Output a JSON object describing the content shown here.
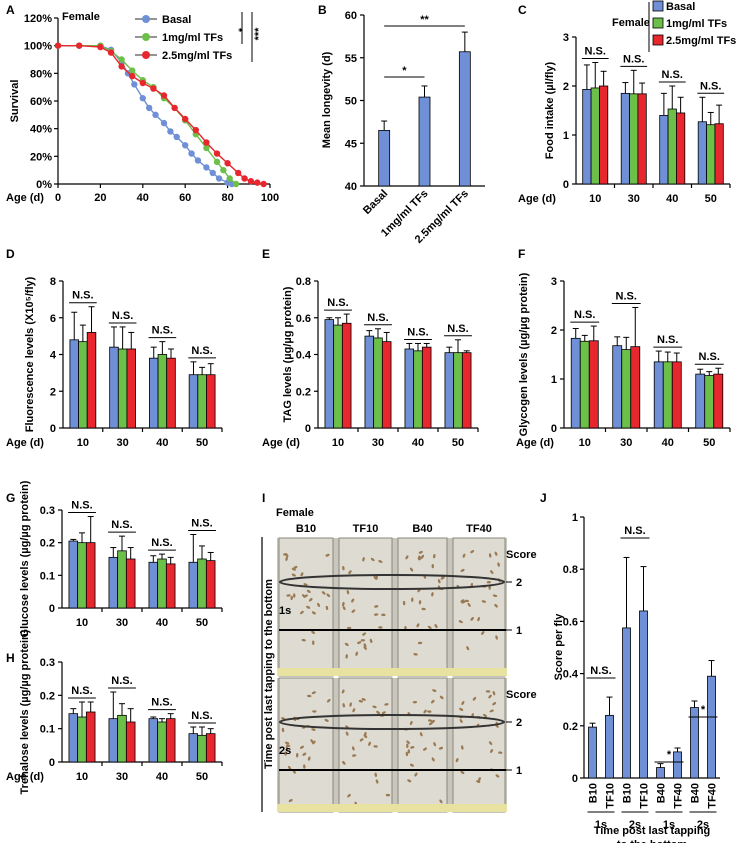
{
  "colors": {
    "basal": "#6f8fd6",
    "tf1": "#6cc04a",
    "tf25": "#e8262e",
    "axis": "#000000",
    "photo_bg": "#c9c6bc",
    "fly": "#9a7a52"
  },
  "panel_labels": [
    "A",
    "B",
    "C",
    "D",
    "E",
    "F",
    "G",
    "H",
    "I",
    "J"
  ],
  "chart_data": [
    {
      "panel": "A",
      "type": "line",
      "title": "Female",
      "xlabel": "Age (d)",
      "ylabel": "Survival",
      "xlim": [
        0,
        100
      ],
      "ylim": [
        0,
        120
      ],
      "x_ticks": [
        "0",
        "20",
        "40",
        "60",
        "80",
        "100"
      ],
      "y_ticks": [
        "0%",
        "20%",
        "40%",
        "60%",
        "80%",
        "100%",
        "120%"
      ],
      "legend": [
        "Basal",
        "1mg/ml TFs",
        "2.5mg/ml TFs"
      ],
      "significance": [
        "*",
        "***"
      ],
      "series": [
        {
          "name": "Basal",
          "x": [
            0,
            10,
            20,
            25,
            30,
            33,
            36,
            40,
            43,
            46,
            50,
            53,
            56,
            60,
            63,
            66,
            70,
            73,
            76,
            80,
            82
          ],
          "y": [
            100,
            100,
            100,
            97,
            88,
            80,
            72,
            62,
            55,
            50,
            44,
            38,
            34,
            28,
            22,
            17,
            12,
            8,
            4,
            1,
            0
          ]
        },
        {
          "name": "1mg/ml TFs",
          "x": [
            0,
            10,
            20,
            25,
            30,
            35,
            40,
            45,
            50,
            55,
            60,
            65,
            70,
            75,
            78,
            81,
            84
          ],
          "y": [
            100,
            100,
            100,
            96,
            90,
            82,
            75,
            70,
            62,
            55,
            46,
            36,
            26,
            16,
            10,
            4,
            0
          ]
        },
        {
          "name": "2.5mg/ml TFs",
          "x": [
            0,
            10,
            20,
            25,
            30,
            35,
            40,
            45,
            50,
            55,
            60,
            65,
            70,
            75,
            80,
            85,
            88,
            91,
            94,
            97
          ],
          "y": [
            100,
            100,
            99,
            95,
            85,
            78,
            73,
            69,
            64,
            55,
            47,
            39,
            30,
            22,
            15,
            8,
            4,
            2,
            1,
            0
          ]
        }
      ]
    },
    {
      "panel": "B",
      "type": "bar",
      "ylabel": "Mean longevity (d)",
      "ylim": [
        40,
        60
      ],
      "y_ticks": [
        "40",
        "45",
        "50",
        "55",
        "60"
      ],
      "categories": [
        "Basal",
        "1mg/ml TFs",
        "2.5mg/ml TFs"
      ],
      "values": [
        46.5,
        50.4,
        55.7
      ],
      "errors": [
        1.1,
        1.3,
        2.3
      ],
      "significance": [
        "*",
        "**"
      ]
    },
    {
      "panel": "C",
      "type": "bar",
      "ylabel": "Food intake (µl/fly)",
      "xlabel": "Age (d)",
      "ylim": [
        0,
        3
      ],
      "y_ticks": [
        "0",
        "1",
        "2",
        "3"
      ],
      "categories": [
        "10",
        "30",
        "40",
        "50"
      ],
      "legend_title": "Female",
      "legend": [
        "Basal",
        "1mg/ml TFs",
        "2.5mg/ml TFs"
      ],
      "annotation": "N.S.",
      "series": [
        {
          "name": "Basal",
          "values": [
            1.93,
            1.85,
            1.4,
            1.27
          ],
          "errors": [
            0.5,
            0.22,
            0.45,
            0.5
          ]
        },
        {
          "name": "1mg/ml TFs",
          "values": [
            1.96,
            1.84,
            1.53,
            1.21
          ],
          "errors": [
            0.52,
            0.48,
            0.47,
            0.25
          ]
        },
        {
          "name": "2.5mg/ml TFs",
          "values": [
            2.0,
            1.84,
            1.45,
            1.23
          ],
          "errors": [
            0.3,
            0.22,
            0.32,
            0.38
          ]
        }
      ]
    },
    {
      "panel": "D",
      "type": "bar",
      "ylabel": "Fluorescence levels (X10⁵/fly)",
      "xlabel": "Age (d)",
      "ylim": [
        0,
        8
      ],
      "y_ticks": [
        "0",
        "2",
        "4",
        "6",
        "8"
      ],
      "categories": [
        "10",
        "30",
        "40",
        "50"
      ],
      "annotation": "N.S.",
      "series": [
        {
          "name": "Basal",
          "values": [
            4.8,
            4.4,
            3.8,
            2.9
          ],
          "errors": [
            1.5,
            1.1,
            0.6,
            0.7
          ]
        },
        {
          "name": "1mg/ml TFs",
          "values": [
            4.7,
            4.3,
            4.0,
            2.9
          ],
          "errors": [
            0.9,
            1.2,
            0.7,
            0.4
          ]
        },
        {
          "name": "2.5mg/ml TFs",
          "values": [
            5.2,
            4.3,
            3.8,
            2.9
          ],
          "errors": [
            1.4,
            0.9,
            0.5,
            0.6
          ]
        }
      ]
    },
    {
      "panel": "E",
      "type": "bar",
      "ylabel": "TAG levels (µg/µg protein)",
      "xlabel": "Age (d)",
      "ylim": [
        0,
        0.8
      ],
      "y_ticks": [
        "0",
        "0.2",
        "0.4",
        "0.6",
        "0.8"
      ],
      "categories": [
        "10",
        "30",
        "40",
        "50"
      ],
      "annotation": "N.S.",
      "series": [
        {
          "name": "Basal",
          "values": [
            0.59,
            0.5,
            0.43,
            0.41
          ],
          "errors": [
            0.01,
            0.03,
            0.03,
            0.03
          ]
        },
        {
          "name": "1mg/ml TFs",
          "values": [
            0.56,
            0.49,
            0.42,
            0.41
          ],
          "errors": [
            0.04,
            0.05,
            0.04,
            0.07
          ]
        },
        {
          "name": "2.5mg/ml TFs",
          "values": [
            0.57,
            0.47,
            0.44,
            0.41
          ],
          "errors": [
            0.05,
            0.05,
            0.02,
            0.01
          ]
        }
      ]
    },
    {
      "panel": "F",
      "type": "bar",
      "ylabel": "Glycogen levels (µg/µg protein)",
      "xlabel": "Age (d)",
      "ylim": [
        0,
        3
      ],
      "y_ticks": [
        "0",
        "1",
        "2",
        "3"
      ],
      "categories": [
        "10",
        "30",
        "40",
        "50"
      ],
      "annotation": "N.S.",
      "series": [
        {
          "name": "Basal",
          "values": [
            1.83,
            1.68,
            1.35,
            1.1
          ],
          "errors": [
            0.2,
            0.18,
            0.22,
            0.1
          ]
        },
        {
          "name": "1mg/ml TFs",
          "values": [
            1.77,
            1.6,
            1.35,
            1.07
          ],
          "errors": [
            0.12,
            0.25,
            0.2,
            0.08
          ]
        },
        {
          "name": "2.5mg/ml TFs",
          "values": [
            1.78,
            1.66,
            1.35,
            1.1
          ],
          "errors": [
            0.3,
            0.8,
            0.18,
            0.12
          ]
        }
      ]
    },
    {
      "panel": "G",
      "type": "bar",
      "ylabel": "Glucose levels (µg/µg protein)",
      "xlabel": "",
      "ylim": [
        0,
        0.3
      ],
      "y_ticks": [
        "0",
        "0.1",
        "0.2",
        "0.3"
      ],
      "categories": [
        "10",
        "30",
        "40",
        "50"
      ],
      "annotation": "N.S.",
      "series": [
        {
          "name": "Basal",
          "values": [
            0.205,
            0.155,
            0.14,
            0.14
          ],
          "errors": [
            0.005,
            0.03,
            0.02,
            0.085
          ]
        },
        {
          "name": "1mg/ml TFs",
          "values": [
            0.2,
            0.175,
            0.15,
            0.15
          ],
          "errors": [
            0.03,
            0.045,
            0.015,
            0.04
          ]
        },
        {
          "name": "2.5mg/ml TFs",
          "values": [
            0.2,
            0.15,
            0.135,
            0.145
          ],
          "errors": [
            0.08,
            0.035,
            0.02,
            0.025
          ]
        }
      ]
    },
    {
      "panel": "H",
      "type": "bar",
      "ylabel": "Trehalose levels (µg/µg protein)",
      "xlabel": "Age (d)",
      "ylim": [
        0,
        0.3
      ],
      "y_ticks": [
        "0",
        "0.1",
        "0.2",
        "0.3"
      ],
      "categories": [
        "10",
        "30",
        "40",
        "50"
      ],
      "annotation": "N.S.",
      "series": [
        {
          "name": "Basal",
          "values": [
            0.145,
            0.13,
            0.13,
            0.085
          ],
          "errors": [
            0.015,
            0.08,
            0.005,
            0.02
          ]
        },
        {
          "name": "1mg/ml TFs",
          "values": [
            0.135,
            0.14,
            0.12,
            0.08
          ],
          "errors": [
            0.045,
            0.035,
            0.01,
            0.025
          ]
        },
        {
          "name": "2.5mg/ml TFs",
          "values": [
            0.15,
            0.12,
            0.13,
            0.085
          ],
          "errors": [
            0.03,
            0.04,
            0.015,
            0.015
          ]
        }
      ]
    },
    {
      "panel": "J",
      "type": "bar",
      "ylabel": "Score per fly",
      "ylim": [
        0,
        1
      ],
      "y_ticks": [
        "0",
        "0.2",
        "0.4",
        "0.6",
        "0.8",
        "1"
      ],
      "categories": [
        "B10",
        "TF10",
        "B10",
        "TF10",
        "B40",
        "TF40",
        "B40",
        "TF40"
      ],
      "values": [
        0.195,
        0.24,
        0.575,
        0.64,
        0.04,
        0.1,
        0.27,
        0.39
      ],
      "errors": [
        0.015,
        0.07,
        0.27,
        0.17,
        0.015,
        0.015,
        0.025,
        0.06
      ],
      "groups": [
        "1s",
        "2s",
        "1s",
        "2s"
      ],
      "xlabel": "Time post last tapping to the bottom",
      "significance": [
        "N.S.",
        "N.S.",
        "*",
        "*"
      ]
    }
  ],
  "panel_i": {
    "title": "Female",
    "columns": [
      "B10",
      "TF10",
      "B40",
      "TF40"
    ],
    "score_label": "Score",
    "score_levels": [
      "2",
      "1"
    ],
    "rows": [
      "1s",
      "2s"
    ],
    "vertical_label": "Time post last tapping to the bottom"
  }
}
